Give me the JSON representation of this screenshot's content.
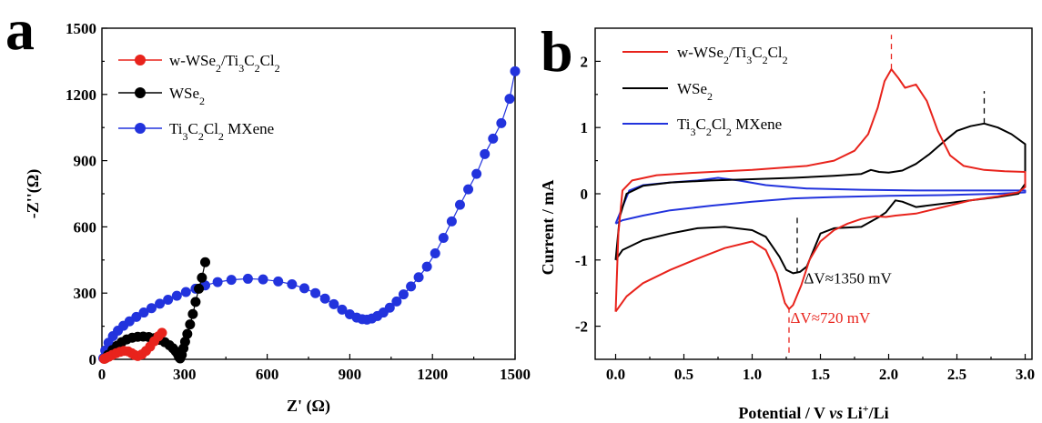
{
  "chart_data": [
    {
      "panel": "a",
      "type": "scatter",
      "xlabel": "Z' (Ω)",
      "ylabel": "-Z''(Ω)",
      "xlim": [
        0,
        1500
      ],
      "ylim": [
        0,
        1500
      ],
      "xticks": [
        "0",
        "300",
        "600",
        "900",
        "1200",
        "1500"
      ],
      "yticks": [
        "0",
        "300",
        "600",
        "900",
        "1200",
        "1500"
      ],
      "legend_position": "top-left",
      "series": [
        {
          "name_parts": [
            "w-WSe",
            "2",
            "/Ti",
            "3",
            "C",
            "2",
            "Cl",
            "2"
          ],
          "color": "#e8231c",
          "points": [
            [
              8,
              2
            ],
            [
              15,
              6
            ],
            [
              25,
              12
            ],
            [
              38,
              20
            ],
            [
              52,
              28
            ],
            [
              66,
              34
            ],
            [
              80,
              38
            ],
            [
              95,
              36
            ],
            [
              108,
              28
            ],
            [
              118,
              20
            ],
            [
              130,
              15
            ],
            [
              145,
              22
            ],
            [
              160,
              38
            ],
            [
              175,
              58
            ],
            [
              190,
              82
            ],
            [
              205,
              104
            ],
            [
              218,
              120
            ]
          ]
        },
        {
          "name_parts": [
            "WSe",
            "2"
          ],
          "color": "#000000",
          "points": [
            [
              10,
              3
            ],
            [
              22,
              20
            ],
            [
              38,
              42
            ],
            [
              55,
              62
            ],
            [
              72,
              78
            ],
            [
              90,
              90
            ],
            [
              110,
              98
            ],
            [
              130,
              102
            ],
            [
              150,
              103
            ],
            [
              170,
              101
            ],
            [
              190,
              96
            ],
            [
              210,
              88
            ],
            [
              228,
              78
            ],
            [
              245,
              64
            ],
            [
              258,
              50
            ],
            [
              268,
              36
            ],
            [
              276,
              22
            ],
            [
              280,
              10
            ],
            [
              284,
              4
            ],
            [
              290,
              20
            ],
            [
              296,
              50
            ],
            [
              302,
              80
            ],
            [
              310,
              115
            ],
            [
              320,
              158
            ],
            [
              330,
              205
            ],
            [
              340,
              260
            ],
            [
              352,
              320
            ],
            [
              363,
              370
            ],
            [
              375,
              440
            ]
          ]
        },
        {
          "name_parts": [
            "Ti",
            "3",
            "C",
            "2",
            "Cl",
            "2",
            " MXene"
          ],
          "color": "#2233dd",
          "points": [
            [
              5,
              5
            ],
            [
              12,
              40
            ],
            [
              24,
              75
            ],
            [
              40,
              105
            ],
            [
              58,
              130
            ],
            [
              78,
              152
            ],
            [
              100,
              172
            ],
            [
              125,
              192
            ],
            [
              152,
              212
            ],
            [
              180,
              232
            ],
            [
              210,
              252
            ],
            [
              240,
              270
            ],
            [
              272,
              288
            ],
            [
              305,
              305
            ],
            [
              340,
              320
            ],
            [
              375,
              335
            ],
            [
              420,
              350
            ],
            [
              470,
              360
            ],
            [
              530,
              365
            ],
            [
              585,
              362
            ],
            [
              640,
              353
            ],
            [
              690,
              340
            ],
            [
              735,
              322
            ],
            [
              775,
              300
            ],
            [
              810,
              275
            ],
            [
              842,
              250
            ],
            [
              872,
              225
            ],
            [
              900,
              204
            ],
            [
              925,
              189
            ],
            [
              945,
              182
            ],
            [
              962,
              180
            ],
            [
              980,
              185
            ],
            [
              1000,
              196
            ],
            [
              1022,
              212
            ],
            [
              1045,
              234
            ],
            [
              1070,
              262
            ],
            [
              1095,
              294
            ],
            [
              1122,
              330
            ],
            [
              1150,
              372
            ],
            [
              1180,
              420
            ],
            [
              1210,
              480
            ],
            [
              1240,
              550
            ],
            [
              1270,
              625
            ],
            [
              1300,
              700
            ],
            [
              1330,
              770
            ],
            [
              1360,
              840
            ],
            [
              1390,
              930
            ],
            [
              1420,
              1000
            ],
            [
              1450,
              1070
            ],
            [
              1480,
              1180
            ],
            [
              1500,
              1305
            ]
          ]
        }
      ]
    },
    {
      "panel": "b",
      "type": "line",
      "xlabel_parts": [
        "Potential / V ",
        "vs",
        " Li",
        "+",
        "/Li"
      ],
      "ylabel": "Current / mA",
      "xlim": [
        -0.15,
        3.05
      ],
      "ylim": [
        -2.5,
        2.5
      ],
      "xticks": [
        "0.0",
        "0.5",
        "1.0",
        "1.5",
        "2.0",
        "2.5",
        "3.0"
      ],
      "yticks": [
        "-2",
        "-1",
        "0",
        "1",
        "2"
      ],
      "legend_position": "top-left",
      "series": [
        {
          "name_parts": [
            "w-WSe",
            "2",
            "/Ti",
            "3",
            "C",
            "2",
            "Cl",
            "2"
          ],
          "color": "#e8231c",
          "points": [
            [
              0,
              -1.78
            ],
            [
              0.02,
              -0.6
            ],
            [
              0.05,
              0.05
            ],
            [
              0.12,
              0.2
            ],
            [
              0.3,
              0.28
            ],
            [
              0.6,
              0.32
            ],
            [
              1.0,
              0.36
            ],
            [
              1.4,
              0.42
            ],
            [
              1.6,
              0.5
            ],
            [
              1.75,
              0.65
            ],
            [
              1.85,
              0.9
            ],
            [
              1.92,
              1.3
            ],
            [
              1.97,
              1.7
            ],
            [
              2.02,
              1.88
            ],
            [
              2.07,
              1.75
            ],
            [
              2.12,
              1.6
            ],
            [
              2.2,
              1.65
            ],
            [
              2.28,
              1.4
            ],
            [
              2.36,
              0.95
            ],
            [
              2.45,
              0.58
            ],
            [
              2.55,
              0.42
            ],
            [
              2.7,
              0.36
            ],
            [
              2.85,
              0.34
            ],
            [
              3.0,
              0.33
            ],
            [
              3.0,
              0.1
            ],
            [
              2.95,
              0.02
            ],
            [
              2.8,
              -0.04
            ],
            [
              2.6,
              -0.1
            ],
            [
              2.4,
              -0.2
            ],
            [
              2.2,
              -0.3
            ],
            [
              2.05,
              -0.33
            ],
            [
              1.98,
              -0.35
            ],
            [
              1.9,
              -0.34
            ],
            [
              1.8,
              -0.38
            ],
            [
              1.7,
              -0.45
            ],
            [
              1.6,
              -0.55
            ],
            [
              1.5,
              -0.72
            ],
            [
              1.42,
              -1.0
            ],
            [
              1.36,
              -1.38
            ],
            [
              1.3,
              -1.68
            ],
            [
              1.27,
              -1.74
            ],
            [
              1.24,
              -1.65
            ],
            [
              1.18,
              -1.2
            ],
            [
              1.1,
              -0.85
            ],
            [
              1.0,
              -0.72
            ],
            [
              0.8,
              -0.82
            ],
            [
              0.6,
              -0.98
            ],
            [
              0.4,
              -1.15
            ],
            [
              0.2,
              -1.35
            ],
            [
              0.08,
              -1.55
            ],
            [
              0,
              -1.78
            ]
          ]
        },
        {
          "name_parts": [
            "WSe",
            "2"
          ],
          "color": "#000000",
          "points": [
            [
              0,
              -1.0
            ],
            [
              0.03,
              -0.35
            ],
            [
              0.08,
              0.0
            ],
            [
              0.2,
              0.12
            ],
            [
              0.4,
              0.17
            ],
            [
              0.7,
              0.2
            ],
            [
              1.0,
              0.22
            ],
            [
              1.3,
              0.24
            ],
            [
              1.6,
              0.27
            ],
            [
              1.8,
              0.3
            ],
            [
              1.87,
              0.36
            ],
            [
              1.93,
              0.33
            ],
            [
              2.0,
              0.32
            ],
            [
              2.1,
              0.35
            ],
            [
              2.2,
              0.45
            ],
            [
              2.3,
              0.6
            ],
            [
              2.4,
              0.78
            ],
            [
              2.5,
              0.95
            ],
            [
              2.6,
              1.02
            ],
            [
              2.7,
              1.06
            ],
            [
              2.8,
              1.0
            ],
            [
              2.9,
              0.9
            ],
            [
              3.0,
              0.75
            ],
            [
              3.0,
              0.15
            ],
            [
              2.95,
              0.0
            ],
            [
              2.8,
              -0.05
            ],
            [
              2.6,
              -0.1
            ],
            [
              2.4,
              -0.15
            ],
            [
              2.2,
              -0.2
            ],
            [
              2.1,
              -0.12
            ],
            [
              2.05,
              -0.1
            ],
            [
              1.98,
              -0.28
            ],
            [
              1.93,
              -0.35
            ],
            [
              1.8,
              -0.5
            ],
            [
              1.6,
              -0.52
            ],
            [
              1.5,
              -0.6
            ],
            [
              1.45,
              -0.85
            ],
            [
              1.4,
              -1.1
            ],
            [
              1.35,
              -1.18
            ],
            [
              1.3,
              -1.2
            ],
            [
              1.25,
              -1.15
            ],
            [
              1.2,
              -0.95
            ],
            [
              1.1,
              -0.65
            ],
            [
              1.0,
              -0.55
            ],
            [
              0.8,
              -0.5
            ],
            [
              0.6,
              -0.52
            ],
            [
              0.4,
              -0.6
            ],
            [
              0.2,
              -0.7
            ],
            [
              0.05,
              -0.85
            ],
            [
              0,
              -1.0
            ]
          ]
        },
        {
          "name_parts": [
            "Ti",
            "3",
            "C",
            "2",
            "Cl",
            "2",
            " MXene"
          ],
          "color": "#2233dd",
          "points": [
            [
              0,
              -0.45
            ],
            [
              0.05,
              -0.2
            ],
            [
              0.1,
              0.05
            ],
            [
              0.2,
              0.13
            ],
            [
              0.4,
              0.17
            ],
            [
              0.6,
              0.2
            ],
            [
              0.75,
              0.24
            ],
            [
              0.9,
              0.2
            ],
            [
              1.1,
              0.13
            ],
            [
              1.4,
              0.08
            ],
            [
              1.8,
              0.06
            ],
            [
              2.2,
              0.05
            ],
            [
              2.6,
              0.05
            ],
            [
              2.9,
              0.05
            ],
            [
              3.0,
              0.05
            ],
            [
              3.0,
              0.02
            ],
            [
              2.8,
              0.0
            ],
            [
              2.4,
              -0.02
            ],
            [
              2.0,
              -0.03
            ],
            [
              1.6,
              -0.05
            ],
            [
              1.3,
              -0.07
            ],
            [
              1.0,
              -0.12
            ],
            [
              0.7,
              -0.18
            ],
            [
              0.4,
              -0.25
            ],
            [
              0.2,
              -0.33
            ],
            [
              0.05,
              -0.4
            ],
            [
              0,
              -0.45
            ]
          ]
        }
      ],
      "markers": [
        {
          "x": 2.02,
          "from": 1.88,
          "to": 2.4,
          "color": "#e8231c"
        },
        {
          "x": 2.7,
          "from": 1.06,
          "to": 1.55,
          "color": "#000000"
        },
        {
          "x": 1.33,
          "from": -1.2,
          "to": -0.3,
          "color": "#000000"
        },
        {
          "x": 1.27,
          "from": -2.4,
          "to": -1.74,
          "color": "#e8231c"
        }
      ],
      "annotations": [
        {
          "text": "ΔV≈1350 mV",
          "color": "#000000",
          "x": 1.38,
          "y": -1.35
        },
        {
          "text": "ΔV≈720 mV",
          "color": "#e8231c",
          "x": 1.28,
          "y": -1.95
        }
      ]
    }
  ],
  "panel_labels": [
    "a",
    "b"
  ]
}
